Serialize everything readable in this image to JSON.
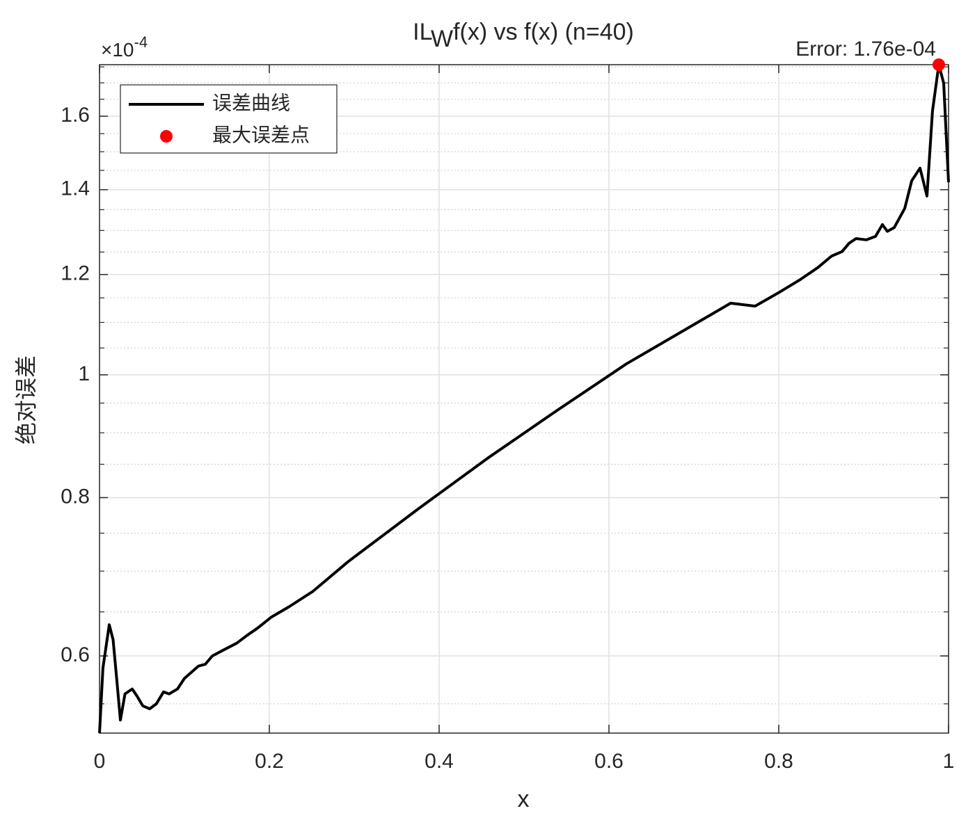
{
  "chart_data": {
    "type": "line",
    "title_parts": [
      "IL",
      "W",
      "f(x) vs f(x) (n=40)"
    ],
    "xlabel": "x",
    "ylabel": "绝对误差",
    "y_multiplier": {
      "base": "×10",
      "exponent": "-4"
    },
    "annotation": "Error: 1.76e-04",
    "xlim": [
      0,
      1
    ],
    "xticks": [
      0,
      0.2,
      0.4,
      0.6,
      0.8,
      1
    ],
    "ylim": [
      0.5215,
      1.757
    ],
    "yticks": [
      0.6,
      0.8,
      1,
      1.2,
      1.4,
      1.6
    ],
    "yminor_ticks": [
      0.55,
      0.65,
      0.7,
      0.75,
      0.85,
      0.9,
      0.95,
      1.05,
      1.1,
      1.15,
      1.25,
      1.3,
      1.35,
      1.45,
      1.5,
      1.55,
      1.65,
      1.7,
      1.75
    ],
    "ylog": true,
    "grid": true,
    "legend_position": "upper left",
    "series": [
      {
        "name": "误差曲线",
        "color": "#000000",
        "x": [
          0,
          0.004,
          0.0115,
          0.016,
          0.0205,
          0.0246,
          0.03,
          0.0385,
          0.044,
          0.051,
          0.059,
          0.067,
          0.0754,
          0.082,
          0.0918,
          0.1,
          0.1164,
          0.1246,
          0.1328,
          0.145,
          0.1615,
          0.174,
          0.186,
          0.2025,
          0.223,
          0.2516,
          0.2926,
          0.3746,
          0.4566,
          0.5385,
          0.6205,
          0.7025,
          0.7434,
          0.7721,
          0.8008,
          0.8254,
          0.8459,
          0.8623,
          0.8746,
          0.8828,
          0.891,
          0.9033,
          0.9139,
          0.9221,
          0.9279,
          0.9361,
          0.9484,
          0.9566,
          0.9664,
          0.9746,
          0.9811,
          0.9885,
          0.9943,
          1
        ],
        "values": [
          0.5215,
          0.587,
          0.635,
          0.618,
          0.573,
          0.534,
          0.56,
          0.565,
          0.558,
          0.548,
          0.545,
          0.55,
          0.562,
          0.56,
          0.565,
          0.576,
          0.589,
          0.591,
          0.6,
          0.606,
          0.614,
          0.623,
          0.631,
          0.644,
          0.656,
          0.675,
          0.712,
          0.783,
          0.859,
          0.937,
          1.02,
          1.098,
          1.139,
          1.133,
          1.162,
          1.189,
          1.215,
          1.241,
          1.251,
          1.27,
          1.281,
          1.278,
          1.286,
          1.314,
          1.298,
          1.307,
          1.353,
          1.423,
          1.456,
          1.384,
          1.615,
          1.757,
          1.699,
          1.419
        ]
      },
      {
        "name": "最大误差点",
        "color": "#ff0000",
        "marker": "circle",
        "x": [
          0.9885
        ],
        "values": [
          1.757
        ]
      }
    ]
  }
}
